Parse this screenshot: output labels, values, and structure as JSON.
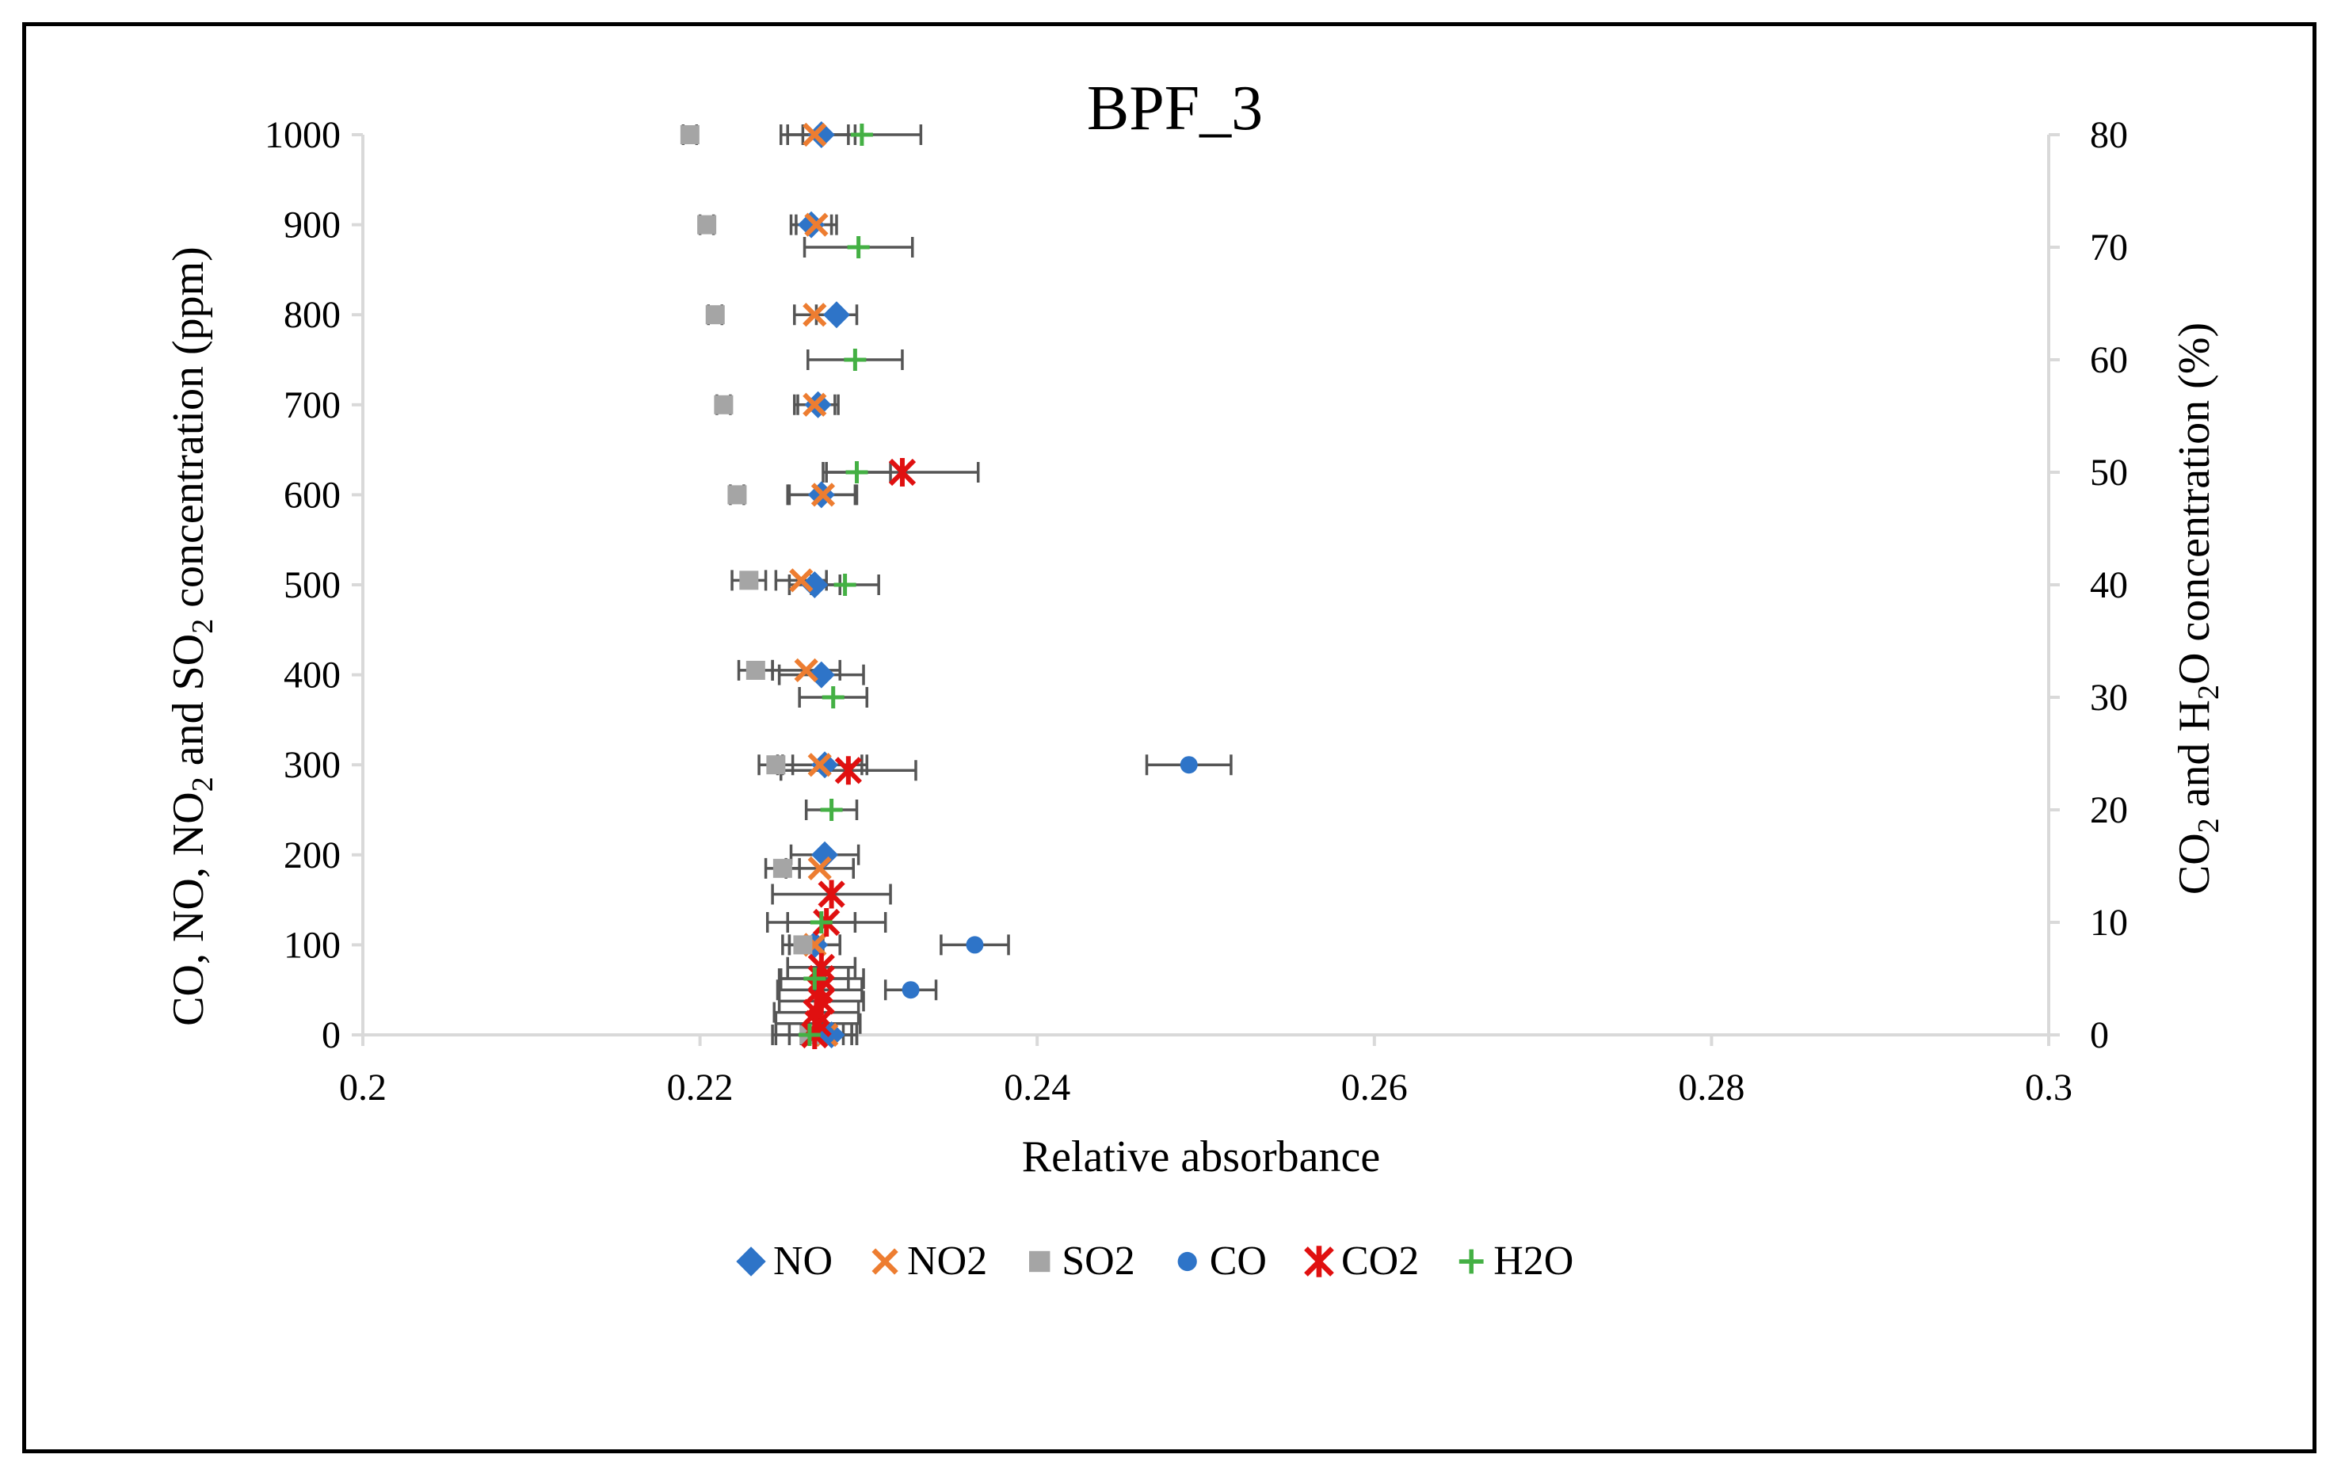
{
  "chart_data": {
    "type": "scatter",
    "title": "BPF_3",
    "xlabel": "Relative absorbance",
    "ylabel": "CO, NO, NO2 and SO2 concentration (ppm)",
    "ylabel_parts": [
      "CO, NO, NO",
      "2",
      " and SO",
      "2",
      " concentration (ppm)"
    ],
    "y2label": "CO2 and H2O concentration (%)",
    "y2label_parts": [
      "CO",
      "2",
      " and H",
      "2",
      "O concentration (%)"
    ],
    "xlim": [
      0.2,
      0.3
    ],
    "ylim": [
      0,
      1000
    ],
    "y2lim": [
      0,
      80
    ],
    "xticks": [
      {
        "value": 0.2,
        "label": "0.2"
      },
      {
        "value": 0.22,
        "label": "0.22"
      },
      {
        "value": 0.24,
        "label": "0.24"
      },
      {
        "value": 0.26,
        "label": "0.26"
      },
      {
        "value": 0.28,
        "label": "0.28"
      },
      {
        "value": 0.3,
        "label": "0.3"
      }
    ],
    "yticks": [
      {
        "value": 0,
        "label": "0"
      },
      {
        "value": 100,
        "label": "100"
      },
      {
        "value": 200,
        "label": "200"
      },
      {
        "value": 300,
        "label": "300"
      },
      {
        "value": 400,
        "label": "400"
      },
      {
        "value": 500,
        "label": "500"
      },
      {
        "value": 600,
        "label": "600"
      },
      {
        "value": 700,
        "label": "700"
      },
      {
        "value": 800,
        "label": "800"
      },
      {
        "value": 900,
        "label": "900"
      },
      {
        "value": 1000,
        "label": "1000"
      }
    ],
    "y2ticks": [
      {
        "value": 0,
        "label": "0"
      },
      {
        "value": 10,
        "label": "10"
      },
      {
        "value": 20,
        "label": "20"
      },
      {
        "value": 30,
        "label": "30"
      },
      {
        "value": 40,
        "label": "40"
      },
      {
        "value": 50,
        "label": "50"
      },
      {
        "value": 60,
        "label": "60"
      },
      {
        "value": 70,
        "label": "70"
      },
      {
        "value": 80,
        "label": "80"
      }
    ],
    "legend_position": "bottom",
    "grid": false,
    "series": [
      {
        "name": "NO",
        "axis": "left",
        "marker": "diamond",
        "color": "#2e74c8",
        "points": [
          {
            "x": 0.2278,
            "y": 0,
            "err": 0.0015
          },
          {
            "x": 0.2268,
            "y": 100,
            "err": 0.0015
          },
          {
            "x": 0.2274,
            "y": 200,
            "err": 0.002
          },
          {
            "x": 0.2274,
            "y": 300,
            "err": 0.0025
          },
          {
            "x": 0.2272,
            "y": 400,
            "err": 0.0025
          },
          {
            "x": 0.2268,
            "y": 500,
            "err": 0.0015
          },
          {
            "x": 0.2272,
            "y": 600,
            "err": 0.002
          },
          {
            "x": 0.227,
            "y": 700,
            "err": 0.0012
          },
          {
            "x": 0.2281,
            "y": 800,
            "err": 0.0012
          },
          {
            "x": 0.2266,
            "y": 900,
            "err": 0.0012
          },
          {
            "x": 0.2272,
            "y": 1000,
            "err": 0.002
          }
        ]
      },
      {
        "name": "NO2",
        "axis": "left",
        "marker": "x",
        "color": "#ed7d31",
        "points": [
          {
            "x": 0.2275,
            "y": 0,
            "err": 0.0015
          },
          {
            "x": 0.2268,
            "y": 100,
            "err": 0.0015
          },
          {
            "x": 0.2271,
            "y": 185,
            "err": 0.002
          },
          {
            "x": 0.2271,
            "y": 300,
            "err": 0.0025
          },
          {
            "x": 0.2263,
            "y": 405,
            "err": 0.002
          },
          {
            "x": 0.226,
            "y": 505,
            "err": 0.0015
          },
          {
            "x": 0.2273,
            "y": 600,
            "err": 0.002
          },
          {
            "x": 0.2268,
            "y": 700,
            "err": 0.0012
          },
          {
            "x": 0.2268,
            "y": 800,
            "err": 0.0012
          },
          {
            "x": 0.2269,
            "y": 900,
            "err": 0.0012
          },
          {
            "x": 0.2268,
            "y": 1000,
            "err": 0.002
          }
        ]
      },
      {
        "name": "SO2",
        "axis": "left",
        "marker": "square",
        "color": "#a5a5a5",
        "points": [
          {
            "x": 0.2265,
            "y": 0,
            "err": 0.0012
          },
          {
            "x": 0.2261,
            "y": 100,
            "err": 0.0012
          },
          {
            "x": 0.2249,
            "y": 185,
            "err": 0.001
          },
          {
            "x": 0.2245,
            "y": 300,
            "err": 0.001
          },
          {
            "x": 0.2233,
            "y": 405,
            "err": 0.001
          },
          {
            "x": 0.2229,
            "y": 505,
            "err": 0.001
          },
          {
            "x": 0.2222,
            "y": 600,
            "err": 0.0004
          },
          {
            "x": 0.2214,
            "y": 700,
            "err": 0.0004
          },
          {
            "x": 0.2209,
            "y": 800,
            "err": 0.0004
          },
          {
            "x": 0.2204,
            "y": 900,
            "err": 0.0004
          },
          {
            "x": 0.2194,
            "y": 1000,
            "err": 0.0004
          }
        ]
      },
      {
        "name": "CO",
        "axis": "left",
        "marker": "circle",
        "color": "#2e74c8",
        "points": [
          {
            "x": 0.2275,
            "y": 0,
            "err": 0.0015
          },
          {
            "x": 0.2325,
            "y": 50,
            "err": 0.0015
          },
          {
            "x": 0.2363,
            "y": 100,
            "err": 0.002
          },
          {
            "x": 0.249,
            "y": 300,
            "err": 0.0025
          }
        ]
      },
      {
        "name": "CO2",
        "axis": "right",
        "marker": "star",
        "color": "#e01010",
        "points": [
          {
            "x": 0.2268,
            "y": 0,
            "err": 0.0025
          },
          {
            "x": 0.227,
            "y": 1,
            "err": 0.0025
          },
          {
            "x": 0.2269,
            "y": 2,
            "err": 0.0025
          },
          {
            "x": 0.2272,
            "y": 3,
            "err": 0.0025
          },
          {
            "x": 0.2271,
            "y": 4,
            "err": 0.0025
          },
          {
            "x": 0.2272,
            "y": 5,
            "err": 0.0025
          },
          {
            "x": 0.2272,
            "y": 6,
            "err": 0.002
          },
          {
            "x": 0.2275,
            "y": 10,
            "err": 0.0035
          },
          {
            "x": 0.2278,
            "y": 12.5,
            "err": 0.0035
          },
          {
            "x": 0.2288,
            "y": 23.5,
            "err": 0.004
          },
          {
            "x": 0.232,
            "y": 50,
            "err": 0.0045
          }
        ]
      },
      {
        "name": "H2O",
        "axis": "right",
        "marker": "plus",
        "color": "#44b044",
        "points": [
          {
            "x": 0.2265,
            "y": 0,
            "err": 0.002
          },
          {
            "x": 0.2268,
            "y": 5,
            "err": 0.002
          },
          {
            "x": 0.2272,
            "y": 10,
            "err": 0.002
          },
          {
            "x": 0.2278,
            "y": 20,
            "err": 0.0015
          },
          {
            "x": 0.2279,
            "y": 30,
            "err": 0.002
          },
          {
            "x": 0.2286,
            "y": 40,
            "err": 0.002
          },
          {
            "x": 0.2293,
            "y": 50,
            "err": 0.002
          },
          {
            "x": 0.2292,
            "y": 60,
            "err": 0.0028
          },
          {
            "x": 0.2294,
            "y": 70,
            "err": 0.0032
          },
          {
            "x": 0.2296,
            "y": 80,
            "err": 0.0035
          }
        ]
      }
    ]
  }
}
